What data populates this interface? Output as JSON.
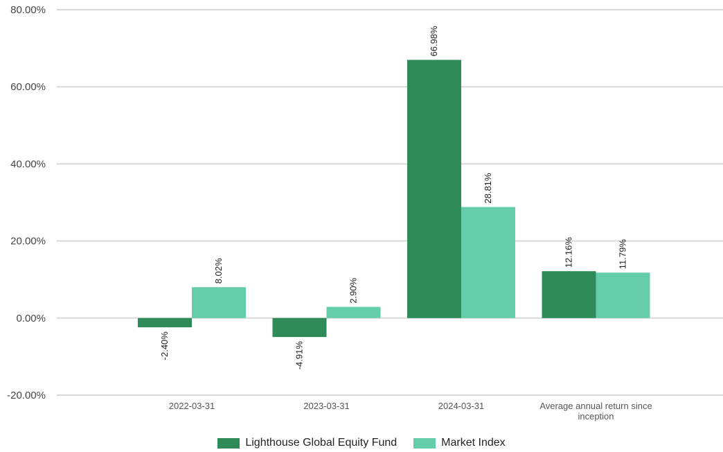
{
  "colors": {
    "fund": "#2e8b57",
    "index": "#66cdaa",
    "grid": "#d9d9d9"
  },
  "chart_data": {
    "type": "bar",
    "categories": [
      "2022-03-31",
      "2023-03-31",
      "2024-03-31",
      "Average annual return since inception"
    ],
    "category_lines": [
      [
        "2022-03-31"
      ],
      [
        "2023-03-31"
      ],
      [
        "2024-03-31"
      ],
      [
        "Average annual return since",
        "inception"
      ]
    ],
    "series": [
      {
        "name": "Lighthouse Global Equity Fund",
        "values": [
          -2.4,
          -4.91,
          66.98,
          12.16
        ],
        "labels": [
          "-2.40%",
          "-4.91%",
          "66.98%",
          "12.16%"
        ]
      },
      {
        "name": "Market Index",
        "values": [
          8.02,
          2.9,
          28.81,
          11.79
        ],
        "labels": [
          "8.02%",
          "2.90%",
          "28.81%",
          "11.79%"
        ]
      }
    ],
    "ylim": [
      -20,
      80
    ],
    "yticks": [
      80,
      60,
      40,
      20,
      0,
      -20
    ],
    "ytick_labels": [
      "80.00%",
      "60.00%",
      "40.00%",
      "20.00%",
      "0.00%",
      "-20.00%"
    ],
    "grid": true,
    "legend_position": "bottom"
  }
}
